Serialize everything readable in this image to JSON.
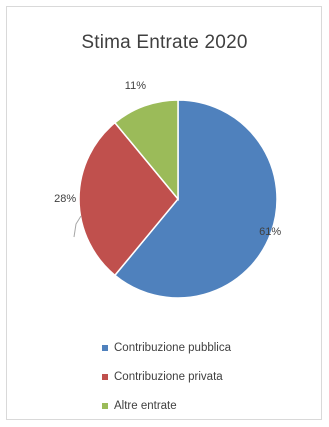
{
  "chart_data": {
    "type": "pie",
    "title": "Stima Entrate 2020",
    "slices": [
      {
        "name": "Contribuzione pubblica",
        "value": 61,
        "label": "61%",
        "color": "#4f81bd"
      },
      {
        "name": "Contribuzione privata",
        "value": 28,
        "label": "28%",
        "color": "#c0504d"
      },
      {
        "name": "Altre entrate",
        "value": 11,
        "label": "11%",
        "color": "#9bbb59"
      }
    ],
    "start_angle_deg": 0,
    "direction": "clockwise",
    "legend_position": "bottom",
    "slice_border_color": "#ffffff"
  }
}
